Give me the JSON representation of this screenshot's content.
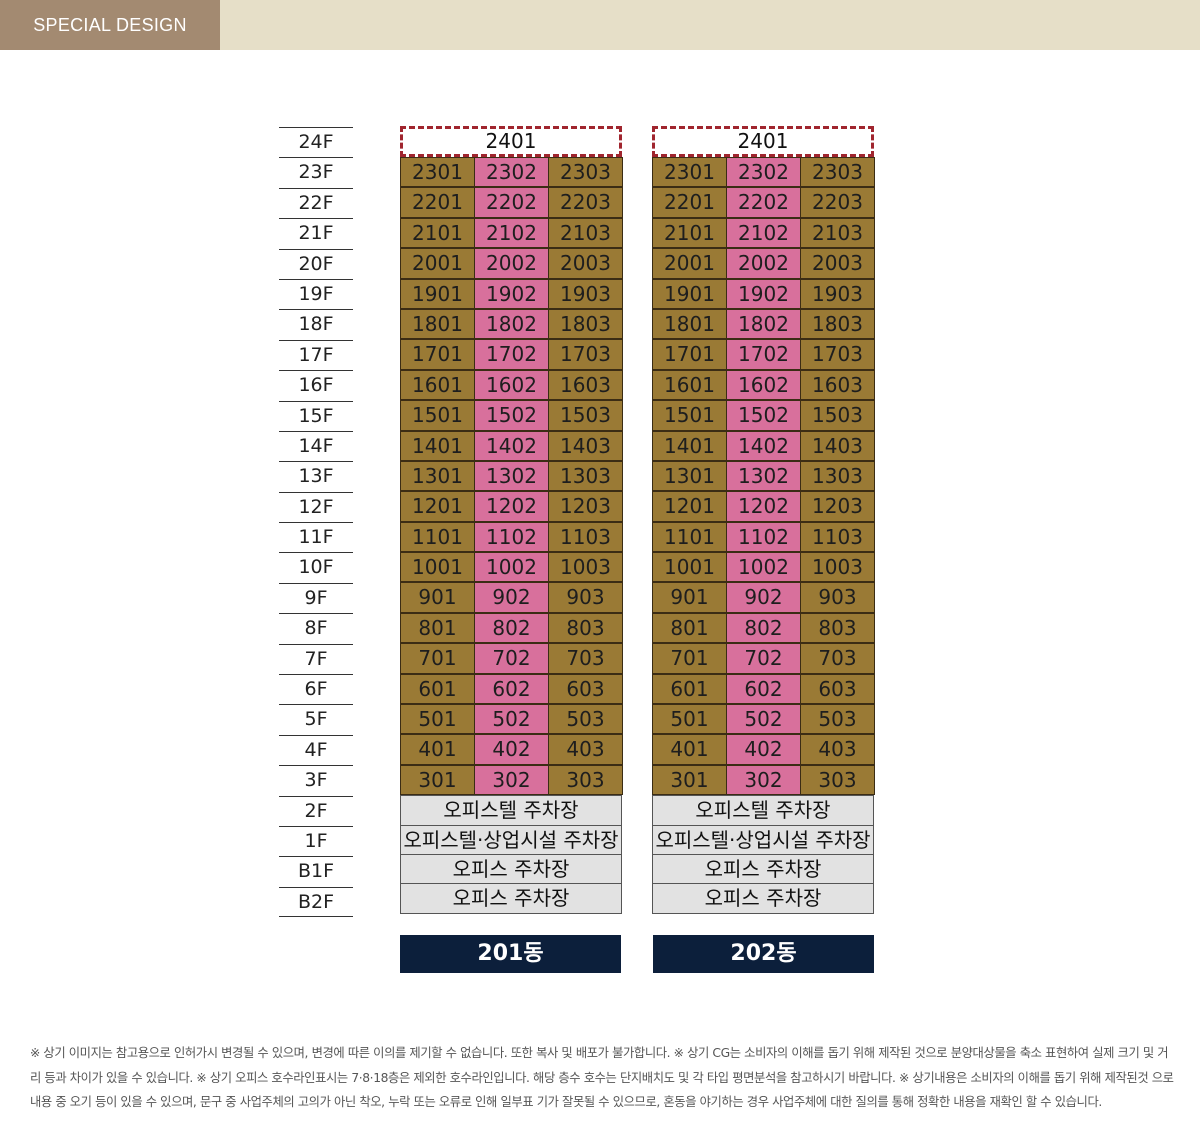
{
  "header": {
    "badge": "SPECIAL DESIGN"
  },
  "floors": [
    "24F",
    "23F",
    "22F",
    "21F",
    "20F",
    "19F",
    "18F",
    "17F",
    "16F",
    "15F",
    "14F",
    "13F",
    "12F",
    "11F",
    "10F",
    "9F",
    "8F",
    "7F",
    "6F",
    "5F",
    "4F",
    "3F",
    "2F",
    "1F",
    "B1F",
    "B2F"
  ],
  "colors": {
    "side_unit": "#9a7a35",
    "middle_unit": "#d8709c",
    "parking": "#e2e2e2",
    "label_bg": "#0c1f3b",
    "top_border": "#a0252e"
  },
  "buildings": [
    {
      "name": "201동",
      "top_unit": "2401",
      "units": [
        [
          "2301",
          "2302",
          "2303"
        ],
        [
          "2201",
          "2202",
          "2203"
        ],
        [
          "2101",
          "2102",
          "2103"
        ],
        [
          "2001",
          "2002",
          "2003"
        ],
        [
          "1901",
          "1902",
          "1903"
        ],
        [
          "1801",
          "1802",
          "1803"
        ],
        [
          "1701",
          "1702",
          "1703"
        ],
        [
          "1601",
          "1602",
          "1603"
        ],
        [
          "1501",
          "1502",
          "1503"
        ],
        [
          "1401",
          "1402",
          "1403"
        ],
        [
          "1301",
          "1302",
          "1303"
        ],
        [
          "1201",
          "1202",
          "1203"
        ],
        [
          "1101",
          "1102",
          "1103"
        ],
        [
          "1001",
          "1002",
          "1003"
        ],
        [
          "901",
          "902",
          "903"
        ],
        [
          "801",
          "802",
          "803"
        ],
        [
          "701",
          "702",
          "703"
        ],
        [
          "601",
          "602",
          "603"
        ],
        [
          "501",
          "502",
          "503"
        ],
        [
          "401",
          "402",
          "403"
        ],
        [
          "301",
          "302",
          "303"
        ]
      ],
      "parking": [
        "오피스텔 주차장",
        "오피스텔·상업시설 주차장",
        "오피스 주차장",
        "오피스 주차장"
      ]
    },
    {
      "name": "202동",
      "top_unit": "2401",
      "units": [
        [
          "2301",
          "2302",
          "2303"
        ],
        [
          "2201",
          "2202",
          "2203"
        ],
        [
          "2101",
          "2102",
          "2103"
        ],
        [
          "2001",
          "2002",
          "2003"
        ],
        [
          "1901",
          "1902",
          "1903"
        ],
        [
          "1801",
          "1802",
          "1803"
        ],
        [
          "1701",
          "1702",
          "1703"
        ],
        [
          "1601",
          "1602",
          "1603"
        ],
        [
          "1501",
          "1502",
          "1503"
        ],
        [
          "1401",
          "1402",
          "1403"
        ],
        [
          "1301",
          "1302",
          "1303"
        ],
        [
          "1201",
          "1202",
          "1203"
        ],
        [
          "1101",
          "1102",
          "1103"
        ],
        [
          "1001",
          "1002",
          "1003"
        ],
        [
          "901",
          "902",
          "903"
        ],
        [
          "801",
          "802",
          "803"
        ],
        [
          "701",
          "702",
          "703"
        ],
        [
          "601",
          "602",
          "603"
        ],
        [
          "501",
          "502",
          "503"
        ],
        [
          "401",
          "402",
          "403"
        ],
        [
          "301",
          "302",
          "303"
        ]
      ],
      "parking": [
        "오피스텔 주차장",
        "오피스텔·상업시설 주차장",
        "오피스 주차장",
        "오피스 주차장"
      ]
    }
  ],
  "disclaimer": "※ 상기 이미지는 참고용으로 인허가시 변경될 수 있으며, 변경에 따른 이의를 제기할 수 없습니다. 또한 복사 및 배포가 불가합니다. ※ 상기 CG는 소비자의 이해를 돕기 위해 제작된 것으로 분양대상물을 축소 표현하여 실제 크기 및 거리 등과 차이가 있을 수 있습니다. ※ 상기 오피스 호수라인표시는 7·8·18층은 제외한 호수라인입니다. 해당 층수 호수는 단지배치도 및 각 타입 평면분석을 참고하시기 바랍니다. ※ 상기내용은 소비자의 이해를 돕기 위해 제작된것 으로 내용 중 오기 등이 있을 수 있으며, 문구 중 사업주체의 고의가 아닌 착오, 누락 또는 오류로 인해 일부표 기가 잘못될 수 있으므로, 혼동을 야기하는 경우 사업주체에 대한 질의를 통해 정확한 내용을 재확인 할 수 있습니다."
}
